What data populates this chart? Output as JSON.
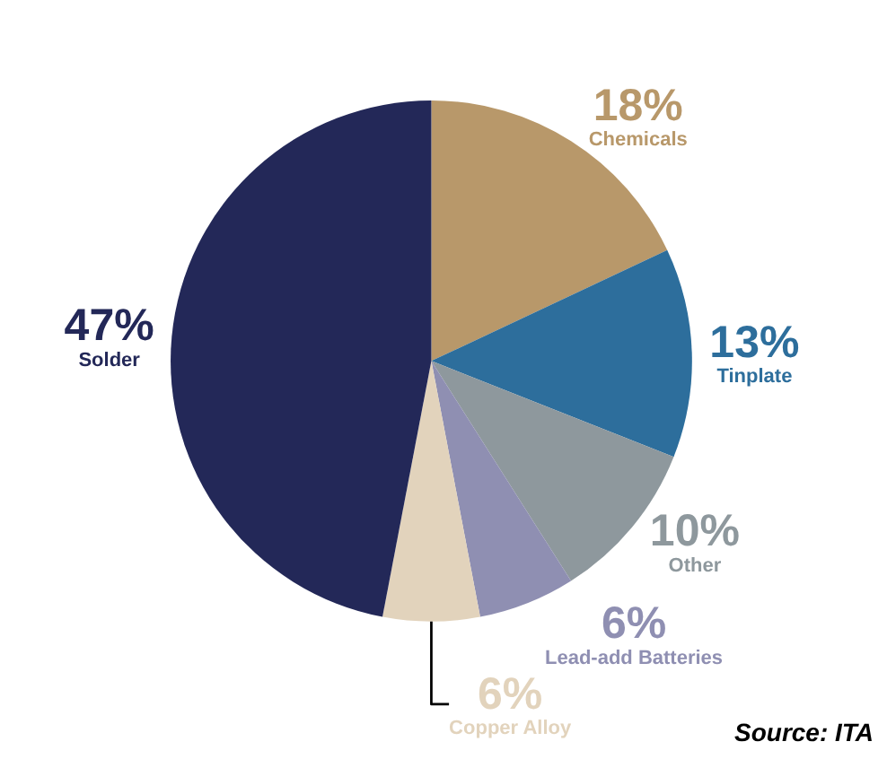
{
  "chart_data": {
    "type": "pie",
    "categories": [
      "Chemicals",
      "Tinplate",
      "Other",
      "Lead-add Batteries",
      "Copper Alloy",
      "Solder"
    ],
    "values": [
      18,
      13,
      10,
      6,
      6,
      47
    ],
    "value_labels": [
      "18%",
      "13%",
      "10%",
      "6%",
      "6%",
      "47%"
    ],
    "colors": [
      "#b8986a",
      "#2d6e9c",
      "#8e989d",
      "#8f8fb2",
      "#e2d3bc",
      "#232858"
    ],
    "annotations": [
      "Source: ITA"
    ]
  }
}
